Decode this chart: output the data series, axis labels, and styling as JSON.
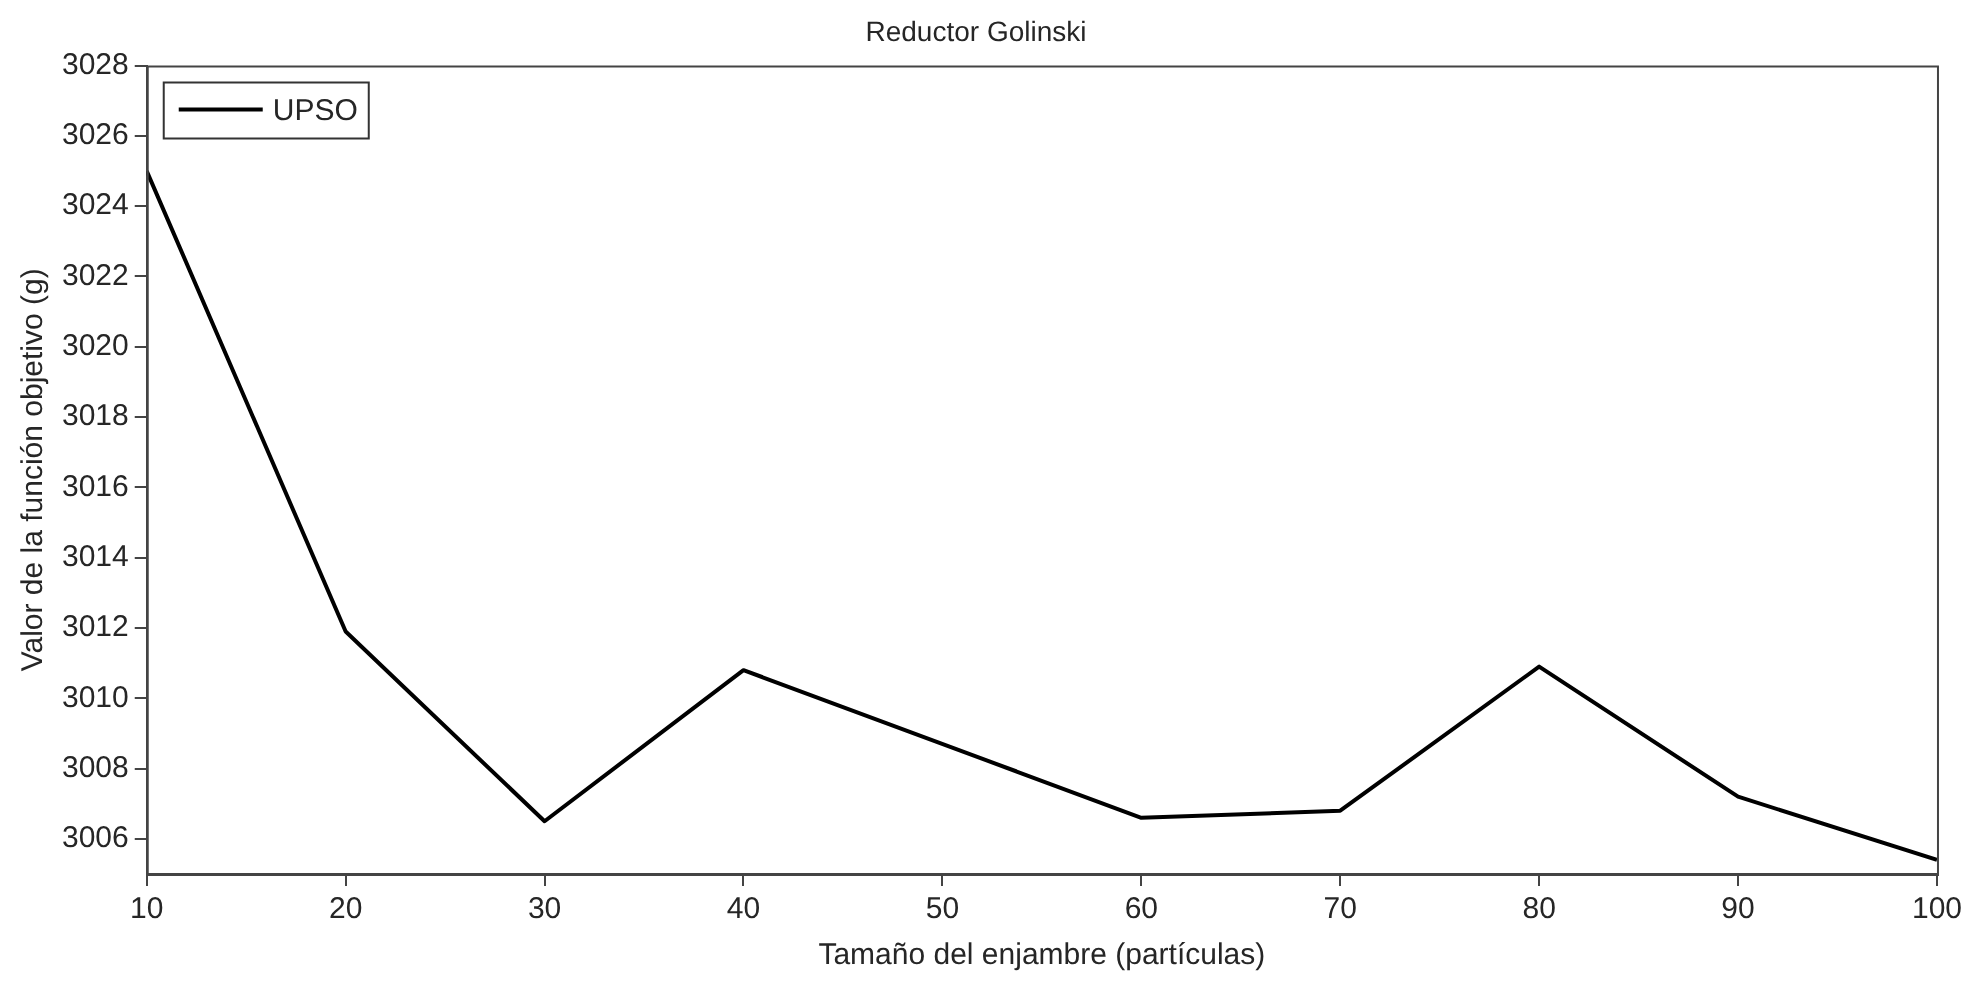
{
  "chart_data": {
    "type": "line",
    "title": "Reductor Golinski",
    "xlabel": "Tamaño del enjambre (partículas)",
    "ylabel": "Valor de la función objetivo (g)",
    "x": [
      10,
      20,
      30,
      40,
      50,
      60,
      70,
      80,
      90,
      100
    ],
    "series": [
      {
        "name": "UPSO",
        "color": "#000000",
        "values": [
          3025.0,
          3011.9,
          3006.5,
          3010.8,
          null,
          3006.6,
          3006.8,
          3010.9,
          3007.2,
          3005.4
        ]
      }
    ],
    "xlim": [
      10,
      100
    ],
    "xticks": [
      10,
      20,
      30,
      40,
      50,
      60,
      70,
      80,
      90,
      100
    ],
    "ylim": [
      3005,
      3028
    ],
    "yticks": [
      3006,
      3008,
      3010,
      3012,
      3014,
      3016,
      3018,
      3020,
      3022,
      3024,
      3026,
      3028
    ],
    "grid": false,
    "legend": "top left",
    "marker": "none",
    "line_style": "solid"
  }
}
